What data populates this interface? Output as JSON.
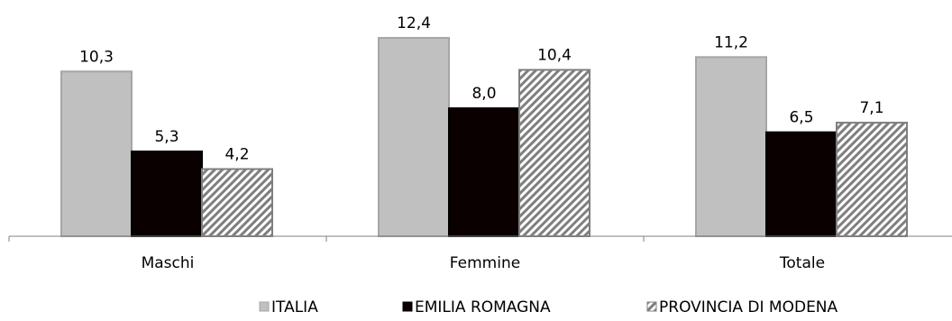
{
  "chart_data": {
    "type": "bar",
    "categories": [
      "Maschi",
      "Femmine",
      "Totale"
    ],
    "series": [
      {
        "name": "ITALIA",
        "values": [
          10.3,
          12.4,
          11.2
        ],
        "color": "#c0c0c0",
        "pattern": "solid"
      },
      {
        "name": "EMILIA ROMAGNA",
        "values": [
          5.3,
          8.0,
          6.5
        ],
        "color": "#0a0000",
        "pattern": "solid"
      },
      {
        "name": "PROVINCIA DI MODENA",
        "values": [
          4.2,
          10.4,
          7.1
        ],
        "color": "#7f7f7f",
        "pattern": "diagonal-hatch"
      }
    ],
    "data_labels": [
      [
        "10,3",
        "12,4",
        "11,2"
      ],
      [
        "5,3",
        "8,0",
        "6,5"
      ],
      [
        "4,2",
        "10,4",
        "7,1"
      ]
    ],
    "ylim": [
      0,
      14
    ],
    "grid": false,
    "legend": "bottom"
  }
}
